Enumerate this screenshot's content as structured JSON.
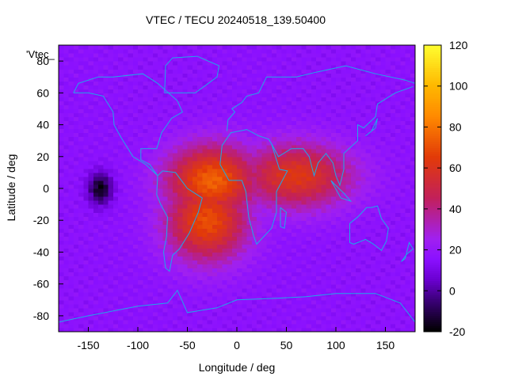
{
  "chart_data": {
    "type": "heatmap",
    "title": "VTEC / TECU 20240518_139.50400",
    "xlabel": "Longitude / deg",
    "ylabel": "Latitude / deg",
    "legend_key": "'Vtec_",
    "xlim": [
      -180,
      180
    ],
    "ylim": [
      -90,
      90
    ],
    "x_ticks": [
      -150,
      -100,
      -50,
      0,
      50,
      100,
      150
    ],
    "y_ticks": [
      -80,
      -60,
      -40,
      -20,
      0,
      20,
      40,
      60,
      80
    ],
    "colorbar": {
      "range": [
        -20,
        120
      ],
      "ticks": [
        -20,
        0,
        20,
        40,
        60,
        80,
        100,
        120
      ],
      "palette": [
        "#000000",
        "#3b0078",
        "#6a00cf",
        "#8a10ff",
        "#a020f0",
        "#c2205a",
        "#e23a08",
        "#ff8a00",
        "#ffb800",
        "#ffff30"
      ],
      "palette_stops": [
        -20,
        -5,
        5,
        15,
        25,
        45,
        65,
        85,
        100,
        120
      ]
    },
    "grid_resolution_deg": [
      5,
      2.5
    ],
    "background_tecu": 16,
    "features": [
      {
        "name": "equatorial-anomaly-core",
        "lon": -25,
        "lat": 5,
        "tecu": 75
      },
      {
        "name": "south-atlantic-crest",
        "lon": -30,
        "lat": -20,
        "tecu": 70
      },
      {
        "name": "africa-indian-ocean-band",
        "lon": 60,
        "lat": 8,
        "tecu": 62
      },
      {
        "name": "pacific-depletion",
        "lon": -138,
        "lat": 0,
        "tecu": -18
      }
    ],
    "map_overlay": "coastlines"
  }
}
